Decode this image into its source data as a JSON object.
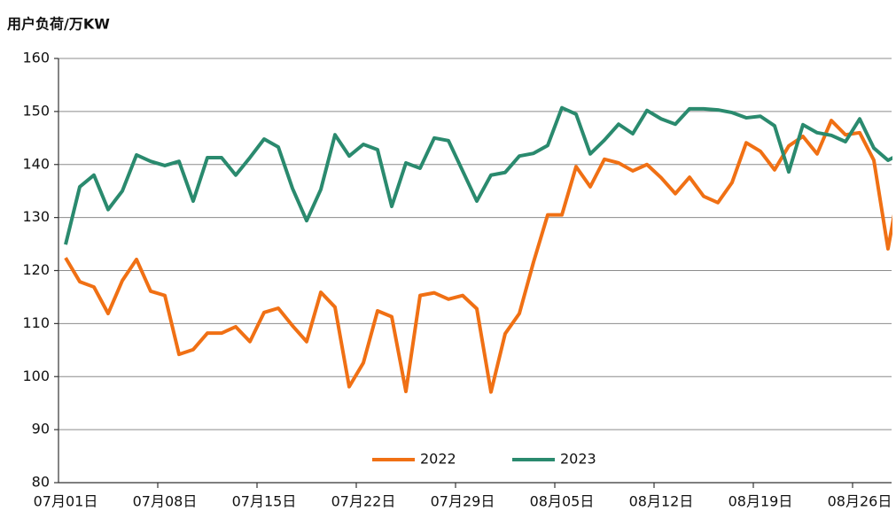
{
  "chart_data": {
    "type": "line",
    "y_axis_label": "用户负荷/万KW",
    "categories": [
      "07月01日",
      null,
      null,
      null,
      null,
      null,
      null,
      "07月08日",
      null,
      null,
      null,
      null,
      null,
      null,
      "07月15日",
      null,
      null,
      null,
      null,
      null,
      null,
      "07月22日",
      null,
      null,
      null,
      null,
      null,
      null,
      "07月29日",
      null,
      null,
      null,
      null,
      null,
      null,
      "08月05日",
      null,
      null,
      null,
      null,
      null,
      null,
      "08月12日",
      null,
      null,
      null,
      null,
      null,
      null,
      "08月19日",
      null,
      null,
      null,
      null,
      null,
      null,
      "08月26日",
      null,
      null,
      null
    ],
    "series": [
      {
        "name": "2022",
        "color": "#f07014",
        "values": [
          122.4,
          117.9,
          116.9,
          111.9,
          118.1,
          122.1,
          116.1,
          115.3,
          104.2,
          105.1,
          108.2,
          108.2,
          109.4,
          106.6,
          112.1,
          112.9,
          109.6,
          106.6,
          115.9,
          113.1,
          98.1,
          102.6,
          112.4,
          111.3,
          97.2,
          115.3,
          115.8,
          114.6,
          115.3,
          112.8,
          97.1,
          108.1,
          111.9,
          121.6,
          130.5,
          130.5,
          139.6,
          135.8,
          141.0,
          140.3,
          138.8,
          140.0,
          137.5,
          134.5,
          137.6,
          134.0,
          132.8,
          136.6,
          144.1,
          142.5,
          139.0,
          143.5,
          145.3,
          142.0,
          148.3,
          145.6,
          146.0,
          140.8,
          124.1,
          139.0
        ]
      },
      {
        "name": "2023",
        "color": "#2a8a6e",
        "values": [
          124.9,
          135.8,
          138.0,
          131.5,
          135.0,
          141.8,
          140.6,
          139.8,
          140.6,
          133.1,
          141.3,
          141.3,
          138.0,
          141.3,
          144.8,
          143.3,
          135.5,
          129.4,
          135.3,
          145.6,
          141.6,
          143.8,
          142.8,
          132.1,
          140.3,
          139.3,
          145.0,
          144.5,
          138.8,
          133.1,
          138.0,
          138.5,
          141.6,
          142.1,
          143.6,
          150.7,
          149.5,
          142.0,
          144.6,
          147.6,
          145.8,
          150.2,
          148.6,
          147.6,
          150.5,
          150.5,
          150.3,
          149.8,
          148.8,
          149.1,
          147.3,
          138.6,
          147.5,
          146.0,
          145.5,
          144.3,
          148.6,
          143.1,
          140.8,
          142.2
        ]
      }
    ],
    "ylim": [
      80,
      160
    ],
    "yticks": [
      80,
      90,
      100,
      110,
      120,
      130,
      140,
      150,
      160
    ],
    "grid": true,
    "legend": "bottom"
  }
}
